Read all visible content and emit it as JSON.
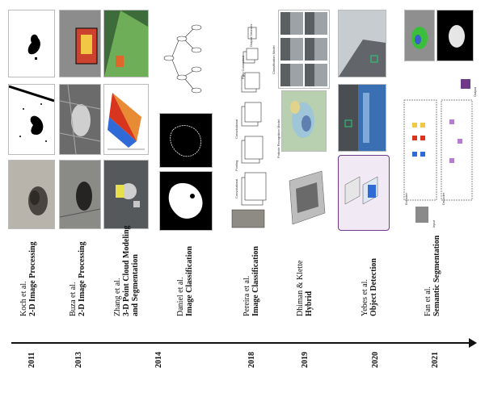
{
  "timeline": [
    {
      "year": "2011",
      "author": "Koch et al.",
      "method": "2-D Image Processing"
    },
    {
      "year": "2013",
      "author": "Buza et al.",
      "method": "2-D Image Processing"
    },
    {
      "year": "2014",
      "author": "Zhang et al.",
      "method": "3-D Point Cloud Modeling and Segmentation",
      "method_line1": "3-D Point Cloud Modeling",
      "method_line2": "and Segmentation"
    },
    {
      "year": "2014",
      "author": "Daniel et al.",
      "method": "Image Classification"
    },
    {
      "year": "2018",
      "author": "Pereira et al.",
      "method": "Image Classification"
    },
    {
      "year": "2019",
      "author": "Dhiman & Klette",
      "method": "Hybrid"
    },
    {
      "year": "2020",
      "author": "Yebes et al.",
      "method": "Object Detection"
    },
    {
      "year": "2021",
      "author": "Fan et al.",
      "method": "Semantic Segmentation"
    }
  ],
  "figure_labels": {
    "cnn_input": "Convolutional",
    "pooling": "Pooling",
    "convolutional": "Convolutional",
    "fully_connected": "Fully Connected",
    "output": "Output Neurons",
    "pothole_model": "Pothole Recognition Model",
    "classification_model": "Classification Model",
    "encoder": "Encoder",
    "decoder": "Decoder",
    "input": "Input",
    "output_seg": "Output"
  },
  "colors": {
    "axis": "#111111",
    "heat_red": "#d8351f",
    "heat_yellow": "#f2c744",
    "seg_green": "#3bbf3b",
    "purple": "#6d3a8a"
  }
}
